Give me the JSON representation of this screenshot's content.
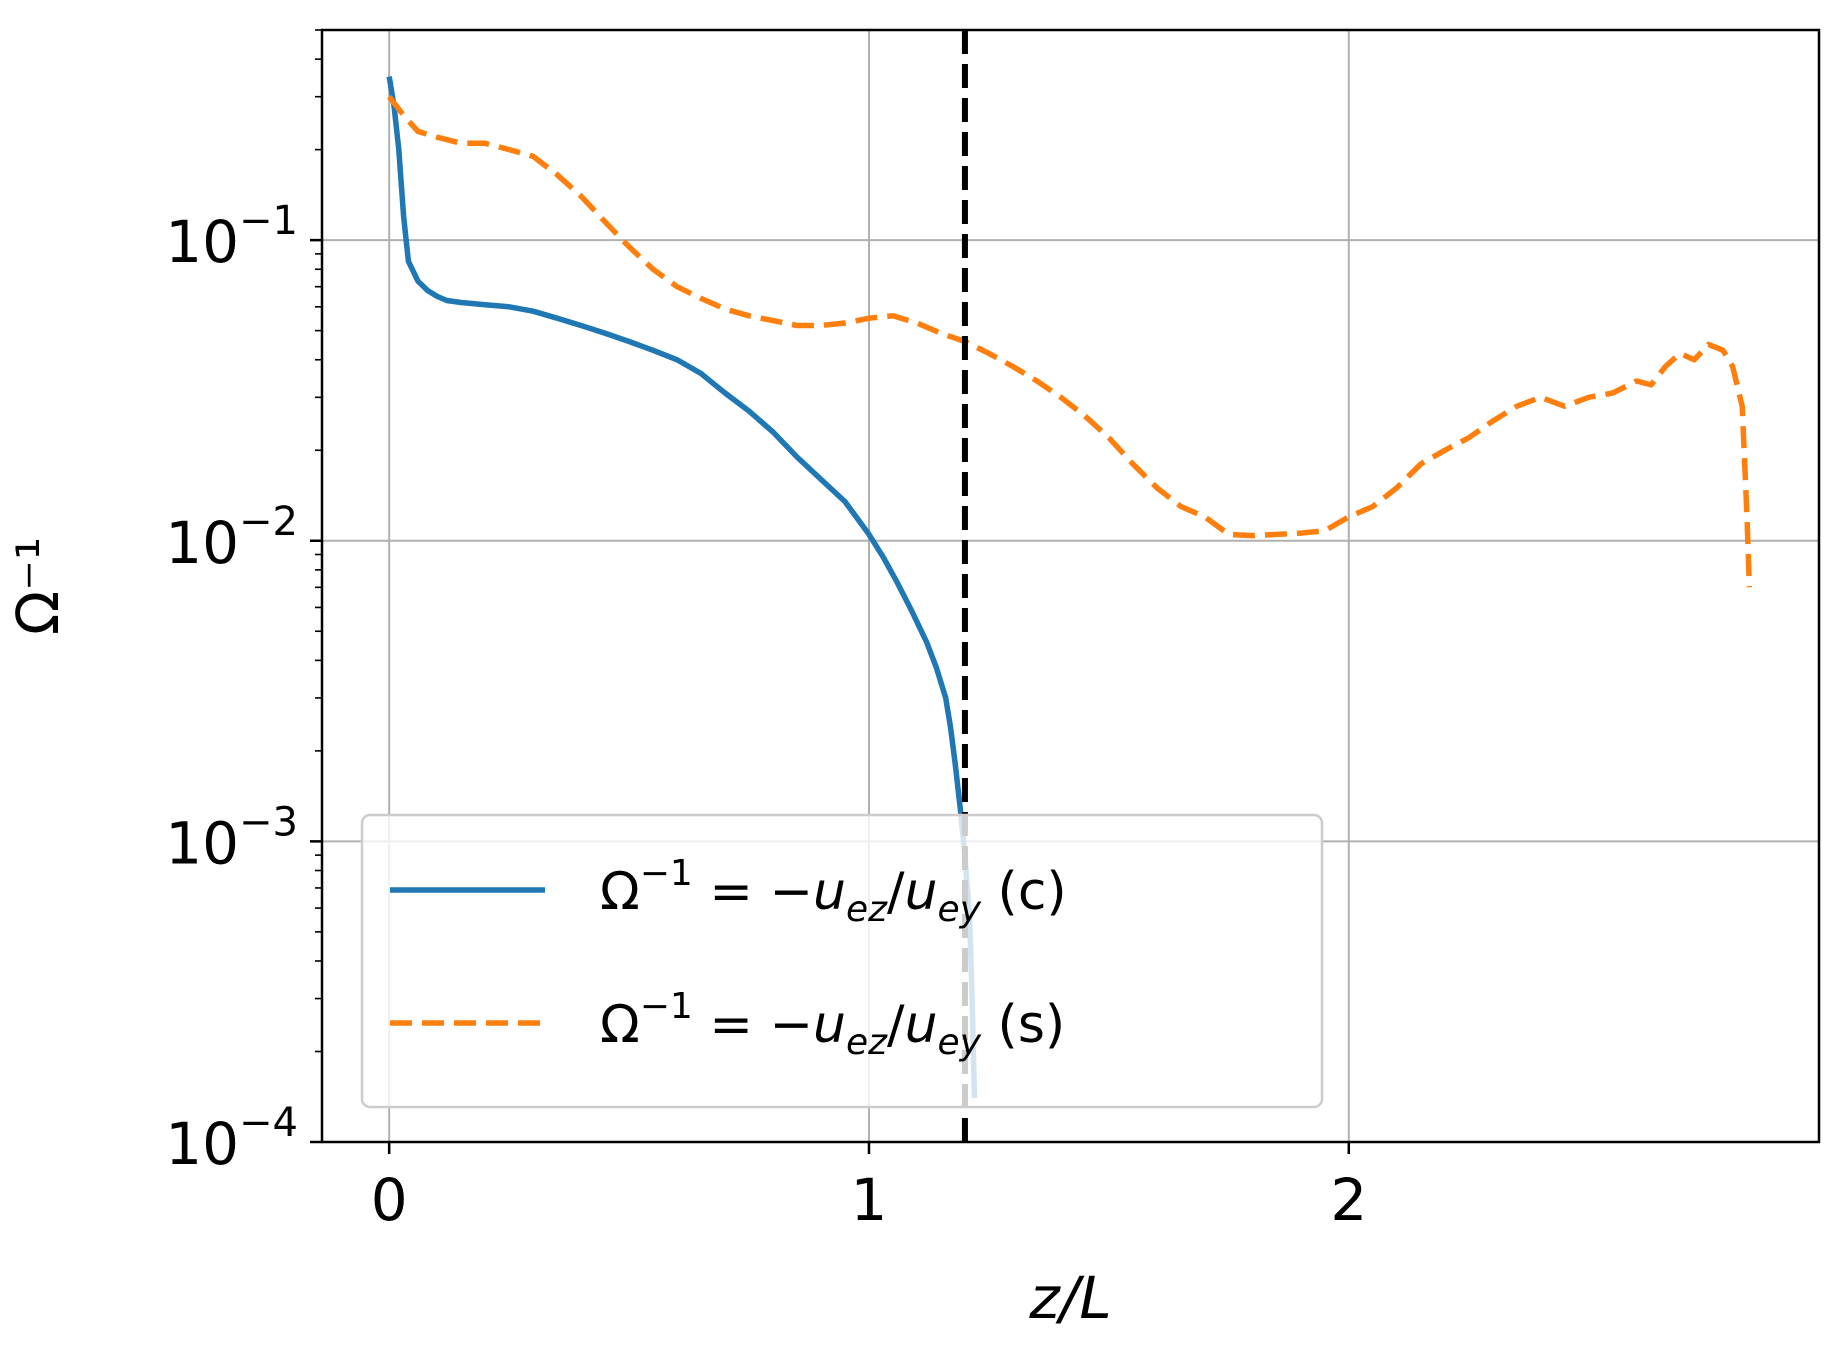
{
  "chart_data": {
    "type": "line",
    "title": "",
    "xlabel": "z/L",
    "ylabel": "Ω⁻¹",
    "yscale": "log",
    "xlim": [
      -0.14,
      2.98
    ],
    "ylim": [
      0.0001,
      0.5
    ],
    "xticks": [
      0,
      1,
      2
    ],
    "xtick_labels": [
      "0",
      "1",
      "2"
    ],
    "yticks": [
      0.1,
      0.01,
      0.001,
      0.0001
    ],
    "ytick_labels": [
      {
        "base": "10",
        "exp": "−1"
      },
      {
        "base": "10",
        "exp": "−2"
      },
      {
        "base": "10",
        "exp": "−3"
      },
      {
        "base": "10",
        "exp": "−4"
      }
    ],
    "grid": true,
    "legend_position": "lower-left",
    "vline": {
      "x": 1.2,
      "color": "#000000",
      "style": "dashed"
    },
    "series": [
      {
        "name": "Ω⁻¹ = −uez/uey (c)",
        "legend": {
          "lhs": "Ω",
          "sup": "−1",
          "eq": " = −",
          "u1": "u",
          "s1": "ez",
          "slash": "/",
          "u2": "u",
          "s2": "ey",
          "tag": " (c)"
        },
        "color": "#1f77b4",
        "style": "solid",
        "x": [
          0.0,
          0.01,
          0.02,
          0.03,
          0.04,
          0.06,
          0.08,
          0.1,
          0.12,
          0.15,
          0.2,
          0.25,
          0.3,
          0.35,
          0.4,
          0.45,
          0.5,
          0.55,
          0.6,
          0.65,
          0.7,
          0.75,
          0.8,
          0.85,
          0.9,
          0.95,
          1.0,
          1.03,
          1.06,
          1.09,
          1.12,
          1.14,
          1.16,
          1.17,
          1.18,
          1.19,
          1.2,
          1.21,
          1.215,
          1.22
        ],
        "y": [
          0.35,
          0.28,
          0.2,
          0.12,
          0.085,
          0.073,
          0.068,
          0.065,
          0.063,
          0.062,
          0.061,
          0.06,
          0.058,
          0.055,
          0.052,
          0.049,
          0.046,
          0.043,
          0.04,
          0.036,
          0.031,
          0.027,
          0.023,
          0.019,
          0.016,
          0.0135,
          0.0105,
          0.0088,
          0.0072,
          0.0058,
          0.0046,
          0.0038,
          0.003,
          0.0024,
          0.0018,
          0.0013,
          0.0009,
          0.00055,
          0.0003,
          0.00014
        ]
      },
      {
        "name": "Ω⁻¹ = −uez/uey (s)",
        "legend": {
          "lhs": "Ω",
          "sup": "−1",
          "eq": " = −",
          "u1": "u",
          "s1": "ez",
          "slash": "/",
          "u2": "u",
          "s2": "ey",
          "tag": " (s)"
        },
        "color": "#ff7f0e",
        "style": "dashed",
        "x": [
          0.0,
          0.03,
          0.06,
          0.1,
          0.15,
          0.2,
          0.25,
          0.3,
          0.35,
          0.4,
          0.45,
          0.5,
          0.55,
          0.6,
          0.65,
          0.7,
          0.75,
          0.8,
          0.85,
          0.9,
          0.95,
          1.0,
          1.05,
          1.1,
          1.15,
          1.2,
          1.25,
          1.3,
          1.35,
          1.4,
          1.45,
          1.5,
          1.55,
          1.6,
          1.65,
          1.7,
          1.75,
          1.8,
          1.85,
          1.9,
          1.95,
          2.0,
          2.05,
          2.1,
          2.15,
          2.2,
          2.25,
          2.3,
          2.35,
          2.4,
          2.45,
          2.5,
          2.55,
          2.6,
          2.63,
          2.66,
          2.69,
          2.72,
          2.75,
          2.78,
          2.8,
          2.82,
          2.83,
          2.835
        ],
        "y": [
          0.3,
          0.26,
          0.23,
          0.22,
          0.21,
          0.21,
          0.2,
          0.19,
          0.165,
          0.14,
          0.115,
          0.095,
          0.08,
          0.07,
          0.064,
          0.059,
          0.056,
          0.054,
          0.052,
          0.052,
          0.053,
          0.055,
          0.056,
          0.053,
          0.049,
          0.046,
          0.042,
          0.038,
          0.034,
          0.03,
          0.026,
          0.022,
          0.018,
          0.015,
          0.013,
          0.012,
          0.0105,
          0.0104,
          0.0105,
          0.0106,
          0.0108,
          0.012,
          0.013,
          0.015,
          0.018,
          0.02,
          0.022,
          0.025,
          0.028,
          0.03,
          0.028,
          0.03,
          0.031,
          0.034,
          0.033,
          0.038,
          0.042,
          0.04,
          0.045,
          0.043,
          0.038,
          0.028,
          0.012,
          0.007
        ]
      }
    ]
  }
}
